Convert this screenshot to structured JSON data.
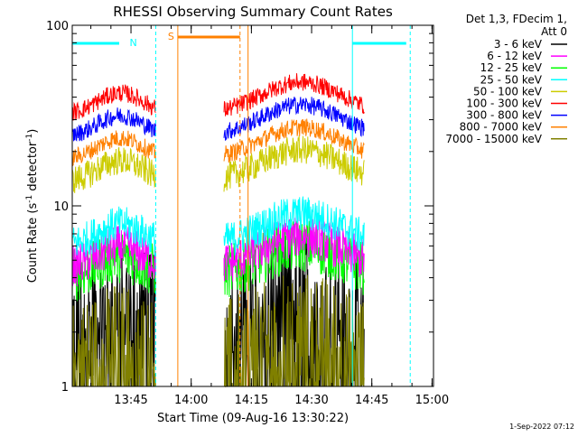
{
  "chart_data": {
    "type": "line",
    "title": "RHESSI Observing Summary Count Rates",
    "xlabel": "Start Time (09-Aug-16 13:30:22)",
    "ylabel_main": "Count Rate (s",
    "ylabel_sup1": "-1",
    "ylabel_mid": " detector",
    "ylabel_sup2": "-1",
    "ylabel_end": ")",
    "yscale": "log",
    "ylim": [
      1,
      100
    ],
    "xlim_minutes": [
      0,
      90
    ],
    "x_ticks": [
      {
        "m": 14.633,
        "label": "13:45"
      },
      {
        "m": 29.633,
        "label": "14:00"
      },
      {
        "m": 44.633,
        "label": "14:15"
      },
      {
        "m": 59.633,
        "label": "14:30"
      },
      {
        "m": 74.633,
        "label": "14:45"
      },
      {
        "m": 89.633,
        "label": "15:00"
      }
    ],
    "y_ticks": [
      {
        "v": 1,
        "label": "1"
      },
      {
        "v": 10,
        "label": "10"
      },
      {
        "v": 100,
        "label": "100"
      }
    ],
    "legend_header": [
      "Det 1,3, FDecim 1,",
      "Att 0"
    ],
    "legend_position": "right",
    "series": [
      {
        "name": "3 - 6 keV",
        "color": "#000000",
        "base": 2.2,
        "noise": 0.35
      },
      {
        "name": "6 - 12 keV",
        "color": "#ff00ff",
        "base": 4.5,
        "noise": 0.12
      },
      {
        "name": "12 - 25 keV",
        "color": "#00ff00",
        "base": 4.0,
        "noise": 0.15
      },
      {
        "name": "25 - 50 keV",
        "color": "#00ffff",
        "base": 6.0,
        "noise": 0.1
      },
      {
        "name": "50 - 100 keV",
        "color": "#cccc00",
        "base": 13.5,
        "noise": 0.08
      },
      {
        "name": "100 - 300 keV",
        "color": "#ff0000",
        "base": 32,
        "noise": 0.05
      },
      {
        "name": "300 - 800 keV",
        "color": "#0000ff",
        "base": 24,
        "noise": 0.05
      },
      {
        "name": "800 - 7000 keV",
        "color": "#ff8000",
        "base": 18,
        "noise": 0.05
      },
      {
        "name": "7000 - 15000 keV",
        "color": "#808000",
        "base": 1.3,
        "noise": 0.35
      }
    ],
    "data_segments_minutes": [
      [
        0,
        20.8
      ],
      [
        37.8,
        72.8
      ]
    ],
    "annotations": [
      {
        "label": "N",
        "color": "#00ffff"
      },
      {
        "label": "S",
        "color": "#ff8000"
      }
    ],
    "footer_timestamp": "1-Sep-2022 07:12"
  }
}
